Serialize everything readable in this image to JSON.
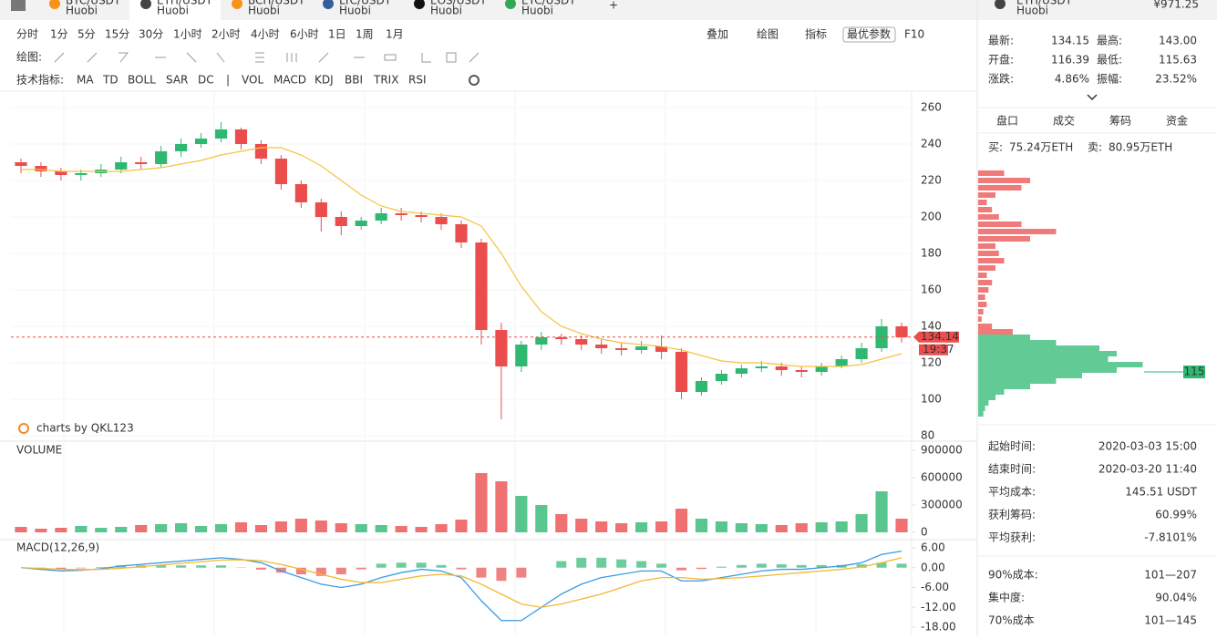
{
  "tabs": [
    {
      "pair": "BTC/USDT",
      "exchange": "Huobi",
      "color": "#f7931a"
    },
    {
      "pair": "ETH/USDT",
      "exchange": "Huobi",
      "color": "#444444"
    },
    {
      "pair": "BCH/USDT",
      "exchange": "Huobi",
      "color": "#f7931a"
    },
    {
      "pair": "LTC/USDT",
      "exchange": "Huobi",
      "color": "#345d9d"
    },
    {
      "pair": "EOS/USDT",
      "exchange": "Huobi",
      "color": "#111111"
    },
    {
      "pair": "ETC/USDT",
      "exchange": "Huobi",
      "color": "#33a852"
    }
  ],
  "header": {
    "pair": "ETH/USDT",
    "exchange": "Huobi",
    "price": "¥971.25"
  },
  "toolbar": {
    "periods": [
      "分时",
      "1分",
      "5分",
      "15分",
      "30分",
      "1小时",
      "2小时",
      "4小时",
      "6小时",
      "1日",
      "1周",
      "1月"
    ],
    "actions": [
      "叠加",
      "绘图",
      "指标"
    ],
    "best_params": "最优参数",
    "f10": "F10",
    "draw_label": "绘图:",
    "indicator_label": "技术指标:",
    "indicators": [
      "MA",
      "TD",
      "BOLL",
      "SAR",
      "DC",
      "|",
      "VOL",
      "MACD",
      "KDJ",
      "BBI",
      "TRIX",
      "RSI"
    ]
  },
  "chart_data": {
    "type": "candlestick",
    "open": [
      230,
      228,
      225,
      223,
      224,
      226,
      230,
      229,
      236,
      240,
      243,
      248,
      240,
      232,
      218,
      208,
      200,
      195,
      198,
      202,
      201,
      200,
      196,
      186,
      138,
      118,
      130,
      134,
      133,
      130,
      128,
      127,
      129,
      126,
      104,
      110,
      114,
      117,
      118,
      116,
      115,
      118,
      122,
      128,
      140
    ],
    "high": [
      232,
      230,
      227,
      226,
      229,
      233,
      233,
      239,
      243,
      246,
      252,
      249,
      242,
      234,
      220,
      210,
      203,
      200,
      205,
      205,
      203,
      202,
      198,
      188,
      142,
      132,
      137,
      136,
      135,
      133,
      131,
      132,
      135,
      128,
      112,
      116,
      119,
      121,
      120,
      118,
      120,
      124,
      131,
      144,
      142
    ],
    "low": [
      224,
      222,
      220,
      220,
      222,
      224,
      226,
      227,
      233,
      238,
      241,
      237,
      229,
      215,
      205,
      192,
      190,
      193,
      196,
      198,
      197,
      193,
      183,
      130,
      89,
      115,
      127,
      130,
      127,
      125,
      124,
      125,
      122,
      100,
      102,
      108,
      112,
      115,
      113,
      112,
      113,
      117,
      120,
      126,
      131
    ],
    "close": [
      228,
      225,
      223,
      224,
      226,
      230,
      229,
      236,
      240,
      243,
      248,
      240,
      232,
      218,
      208,
      200,
      195,
      198,
      202,
      201,
      200,
      196,
      186,
      138,
      118,
      130,
      134,
      133,
      130,
      128,
      127,
      129,
      126,
      104,
      110,
      114,
      117,
      118,
      116,
      115,
      118,
      122,
      128,
      140,
      134
    ],
    "up_color": "#2eb872",
    "down_color": "#eb4d4d",
    "ma_lines": [
      {
        "color": "#f5c242",
        "values": [
          226,
          226,
          225,
          225,
          225,
          225,
          226,
          227,
          229,
          231,
          234,
          236,
          238,
          238,
          234,
          228,
          220,
          212,
          206,
          203,
          202,
          201,
          200,
          195,
          180,
          162,
          148,
          140,
          136,
          133,
          131,
          130,
          129,
          127,
          124,
          121,
          120,
          120,
          119,
          118,
          118,
          118,
          119,
          122,
          125
        ]
      }
    ],
    "ylim": [
      80,
      260
    ],
    "yticks": [
      260,
      240,
      220,
      200,
      180,
      160,
      140,
      120,
      100,
      80
    ],
    "last_price": 134.14,
    "last_time": "19:37",
    "watermark": "charts by QKL123",
    "volume": {
      "title": "VOLUME",
      "ylim": [
        0,
        900000
      ],
      "yticks": [
        900000,
        600000,
        300000,
        0
      ],
      "values": [
        60000,
        40000,
        50000,
        70000,
        50000,
        60000,
        80000,
        90000,
        100000,
        70000,
        90000,
        110000,
        80000,
        120000,
        150000,
        130000,
        100000,
        90000,
        80000,
        70000,
        60000,
        90000,
        140000,
        650000,
        560000,
        400000,
        300000,
        200000,
        150000,
        120000,
        100000,
        110000,
        120000,
        260000,
        150000,
        120000,
        100000,
        90000,
        80000,
        100000,
        110000,
        120000,
        200000,
        450000,
        150000
      ]
    },
    "macd": {
      "title": "MACD(12,26,9)",
      "ylim": [
        -18,
        6
      ],
      "yticks": [
        {
          "value": 6,
          "label": "6.00"
        },
        {
          "value": 0,
          "label": "0.00"
        },
        {
          "value": -6,
          "label": "-6.00"
        },
        {
          "value": -12,
          "label": "-12.00"
        },
        {
          "value": -18,
          "label": "-18.00"
        }
      ],
      "dif": {
        "color": "#3a9be8",
        "values": [
          0,
          -0.5,
          -1,
          -0.8,
          -0.3,
          0.5,
          1,
          1.5,
          2,
          2.5,
          3,
          2.5,
          1.5,
          -1,
          -3,
          -5,
          -6,
          -5,
          -3,
          -1.5,
          -0.5,
          -1,
          -3,
          -10,
          -16,
          -16,
          -12,
          -8,
          -5,
          -3,
          -2,
          -1,
          -1,
          -4,
          -4,
          -3,
          -2,
          -1,
          -0.5,
          -0.5,
          0,
          0.5,
          1.5,
          4,
          5
        ]
      },
      "dea": {
        "color": "#f5b830",
        "values": [
          0,
          -0.2,
          -0.5,
          -0.6,
          -0.5,
          -0.2,
          0.3,
          0.8,
          1.3,
          1.8,
          2.3,
          2.4,
          2.1,
          1,
          -0.5,
          -2,
          -3.5,
          -4.5,
          -4.5,
          -3.5,
          -2.5,
          -2,
          -2.5,
          -5,
          -8,
          -11,
          -12,
          -11,
          -9.5,
          -8,
          -6,
          -4,
          -3,
          -3,
          -3.5,
          -3.3,
          -3,
          -2.5,
          -2,
          -1.5,
          -1,
          -0.5,
          0.2,
          1.5,
          3
        ]
      },
      "hist": [
        0,
        -0.3,
        -0.5,
        -0.2,
        0.2,
        0.7,
        0.7,
        0.7,
        0.7,
        0.7,
        0.7,
        0.1,
        -0.6,
        -1.5,
        -2,
        -2.5,
        -2,
        -0.5,
        1.2,
        1.5,
        1.5,
        0.8,
        -0.5,
        -3,
        -4,
        -3,
        0,
        2,
        3,
        3,
        2.5,
        2,
        1.2,
        -0.8,
        -0.4,
        0.3,
        0.8,
        1.2,
        1,
        0.8,
        0.8,
        0.8,
        1,
        1.5,
        1.2
      ]
    },
    "chip_distribution": {
      "prices": [
        224,
        220,
        216,
        212,
        208,
        204,
        200,
        196,
        192,
        188,
        184,
        180,
        176,
        172,
        168,
        164,
        160,
        156,
        152,
        148,
        144,
        140,
        137,
        134,
        131,
        128,
        125,
        122,
        119,
        116,
        113,
        110,
        107,
        104,
        101,
        98,
        95,
        92
      ],
      "amounts": [
        15,
        30,
        25,
        10,
        5,
        8,
        12,
        25,
        45,
        30,
        10,
        12,
        15,
        10,
        5,
        8,
        6,
        4,
        5,
        3,
        2,
        8,
        20,
        30,
        45,
        70,
        80,
        75,
        95,
        80,
        60,
        45,
        30,
        15,
        10,
        6,
        4,
        3
      ],
      "marker": 115
    }
  },
  "side_panel": {
    "stats": [
      [
        "最新:",
        "134.15",
        "最高:",
        "143.00"
      ],
      [
        "开盘:",
        "116.39",
        "最低:",
        "115.63"
      ],
      [
        "涨跌:",
        "4.86%",
        "振幅:",
        "23.52%"
      ]
    ],
    "tabs": [
      "盘口",
      "成交",
      "筹码",
      "资金"
    ],
    "buy_label": "买:",
    "buy_value": "75.24万ETH",
    "sell_label": "卖:",
    "sell_value": "80.95万ETH",
    "info": [
      [
        "起始时间:",
        "2020-03-03 15:00"
      ],
      [
        "结束时间:",
        "2020-03-20 11:40"
      ],
      [
        "平均成本:",
        "145.51 USDT"
      ],
      [
        "获利筹码:",
        "60.99%"
      ],
      [
        "平均获利:",
        "-7.8101%"
      ]
    ],
    "cost": [
      [
        "90%成本:",
        "101—207"
      ],
      [
        "集中度:",
        "90.04%"
      ],
      [
        "70%成本",
        "101—145"
      ]
    ]
  }
}
